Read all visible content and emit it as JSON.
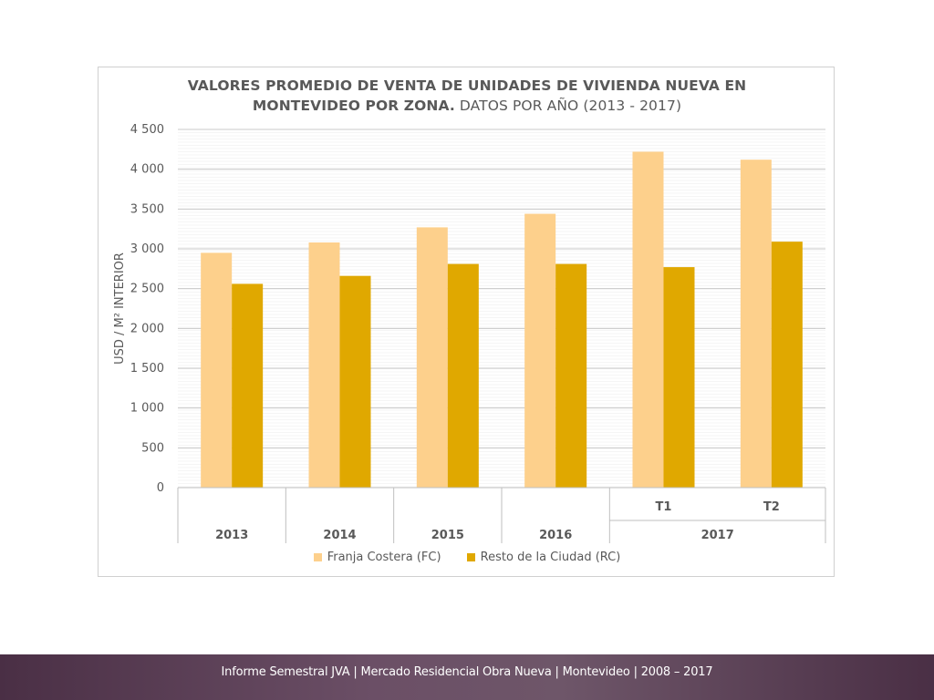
{
  "chart_data": {
    "type": "bar",
    "title_bold": "VALORES PROMEDIO DE VENTA DE UNIDADES DE VIVIENDA NUEVA EN MONTEVIDEO POR ZONA.",
    "title_normal": "DATOS POR AÑO (2013 - 2017)",
    "title_line1": "VALORES PROMEDIO DE VENTA DE UNIDADES DE VIVIENDA NUEVA EN",
    "title_line2_bold": "MONTEVIDEO POR ZONA.",
    "title_line2_normal": "DATOS POR AÑO (2013 - 2017)",
    "ylabel": "USD / M² INTERIOR",
    "xlabel": "",
    "ylim": [
      0,
      4500
    ],
    "yticks": [
      0,
      500,
      1000,
      1500,
      2000,
      2500,
      3000,
      3500,
      4000,
      4500
    ],
    "ytick_labels": [
      "0",
      "500",
      "1 000",
      "1 500",
      "2 000",
      "2 500",
      "3 000",
      "3 500",
      "4 000",
      "4 500"
    ],
    "categories": [
      "2013",
      "2014",
      "2015",
      "2016",
      "T1",
      "T2"
    ],
    "category_groups": [
      {
        "label": "2013",
        "span": 1
      },
      {
        "label": "2014",
        "span": 1
      },
      {
        "label": "2015",
        "span": 1
      },
      {
        "label": "2016",
        "span": 1
      },
      {
        "label": "2017",
        "span": 2
      }
    ],
    "sub_labels": [
      "",
      "",
      "",
      "",
      "T1",
      "T2"
    ],
    "series": [
      {
        "name": "Franja Costera (FC)",
        "color": "#fdd08c",
        "values": [
          2950,
          3080,
          3270,
          3440,
          4220,
          4120
        ]
      },
      {
        "name": "Resto de la Ciudad (RC)",
        "color": "#e0a800",
        "values": [
          2560,
          2660,
          2810,
          2810,
          2770,
          3090
        ]
      }
    ],
    "legend_position": "bottom",
    "grid": true
  },
  "footer": {
    "text": "Informe Semestral JVA | Mercado Residencial Obra Nueva | Montevideo | 2008 – 2017"
  }
}
